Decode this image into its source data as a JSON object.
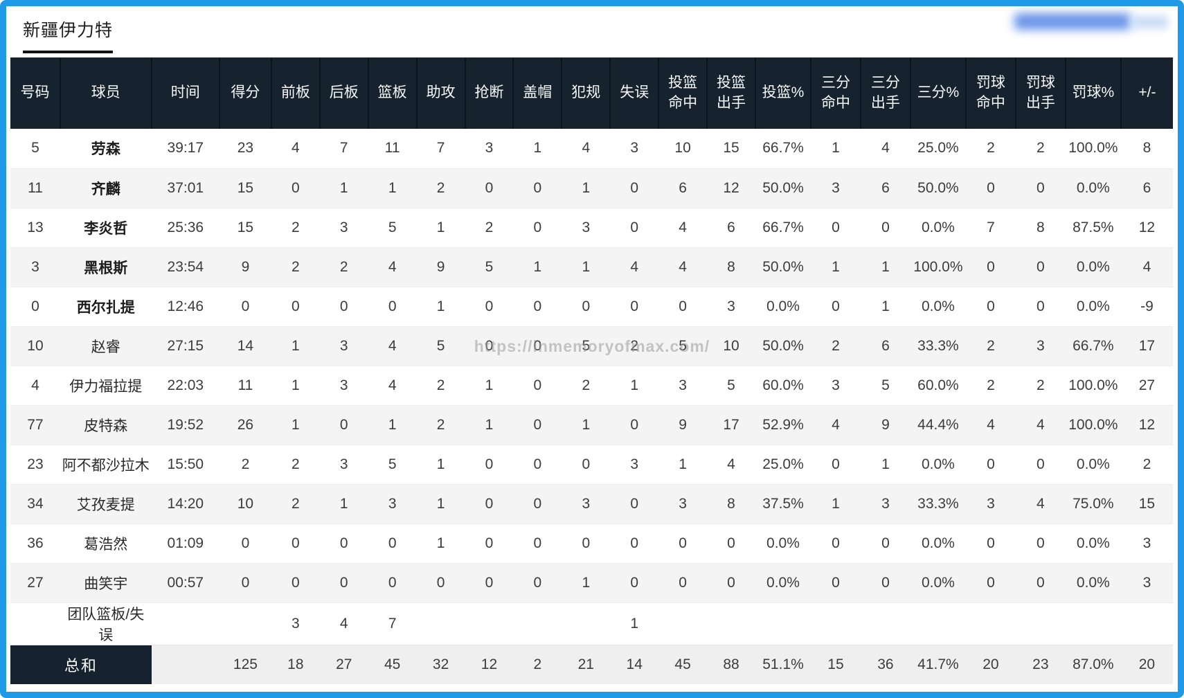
{
  "page": {
    "team_tab": "新疆伊力特",
    "watermark": "https://inmemoryofmax.com/",
    "accent_colors": {
      "frame_border": "#1e9ae8",
      "header_bg": "#16222e",
      "row_alt_bg": "#f4f4f4",
      "totals_bg": "#efefef"
    }
  },
  "table": {
    "headers": [
      "号码",
      "球员",
      "时间",
      "得分",
      "前板",
      "后板",
      "篮板",
      "助攻",
      "抢断",
      "盖帽",
      "犯规",
      "失误",
      "投篮\n命中",
      "投篮\n出手",
      "投篮%",
      "三分\n命中",
      "三分\n出手",
      "三分%",
      "罚球\n命中",
      "罚球\n出手",
      "罚球%",
      "+/-"
    ],
    "rows": [
      {
        "bold": true,
        "cells": [
          "5",
          "劳森",
          "39:17",
          "23",
          "4",
          "7",
          "11",
          "7",
          "3",
          "1",
          "4",
          "3",
          "10",
          "15",
          "66.7%",
          "1",
          "4",
          "25.0%",
          "2",
          "2",
          "100.0%",
          "8"
        ]
      },
      {
        "bold": true,
        "cells": [
          "11",
          "齐麟",
          "37:01",
          "15",
          "0",
          "1",
          "1",
          "2",
          "0",
          "0",
          "1",
          "0",
          "6",
          "12",
          "50.0%",
          "3",
          "6",
          "50.0%",
          "0",
          "0",
          "0.0%",
          "6"
        ]
      },
      {
        "bold": true,
        "cells": [
          "13",
          "李炎哲",
          "25:36",
          "15",
          "2",
          "3",
          "5",
          "1",
          "2",
          "0",
          "3",
          "0",
          "4",
          "6",
          "66.7%",
          "0",
          "0",
          "0.0%",
          "7",
          "8",
          "87.5%",
          "12"
        ]
      },
      {
        "bold": true,
        "cells": [
          "3",
          "黑根斯",
          "23:54",
          "9",
          "2",
          "2",
          "4",
          "9",
          "5",
          "1",
          "1",
          "4",
          "4",
          "8",
          "50.0%",
          "1",
          "1",
          "100.0%",
          "0",
          "0",
          "0.0%",
          "4"
        ]
      },
      {
        "bold": true,
        "cells": [
          "0",
          "西尔扎提",
          "12:46",
          "0",
          "0",
          "0",
          "0",
          "1",
          "0",
          "0",
          "0",
          "0",
          "0",
          "3",
          "0.0%",
          "0",
          "1",
          "0.0%",
          "0",
          "0",
          "0.0%",
          "-9"
        ]
      },
      {
        "bold": false,
        "cells": [
          "10",
          "赵睿",
          "27:15",
          "14",
          "1",
          "3",
          "4",
          "5",
          "0",
          "0",
          "5",
          "2",
          "5",
          "10",
          "50.0%",
          "2",
          "6",
          "33.3%",
          "2",
          "3",
          "66.7%",
          "17"
        ]
      },
      {
        "bold": false,
        "cells": [
          "4",
          "伊力福拉提",
          "22:03",
          "11",
          "1",
          "3",
          "4",
          "2",
          "1",
          "0",
          "2",
          "1",
          "3",
          "5",
          "60.0%",
          "3",
          "5",
          "60.0%",
          "2",
          "2",
          "100.0%",
          "27"
        ]
      },
      {
        "bold": false,
        "cells": [
          "77",
          "皮特森",
          "19:52",
          "26",
          "1",
          "0",
          "1",
          "2",
          "1",
          "0",
          "1",
          "0",
          "9",
          "17",
          "52.9%",
          "4",
          "9",
          "44.4%",
          "4",
          "4",
          "100.0%",
          "12"
        ]
      },
      {
        "bold": false,
        "cells": [
          "23",
          "阿不都沙拉木",
          "15:50",
          "2",
          "2",
          "3",
          "5",
          "1",
          "0",
          "0",
          "0",
          "3",
          "1",
          "4",
          "25.0%",
          "0",
          "1",
          "0.0%",
          "0",
          "0",
          "0.0%",
          "2"
        ]
      },
      {
        "bold": false,
        "cells": [
          "34",
          "艾孜麦提",
          "14:20",
          "10",
          "2",
          "1",
          "3",
          "1",
          "0",
          "0",
          "3",
          "0",
          "3",
          "8",
          "37.5%",
          "1",
          "3",
          "33.3%",
          "3",
          "4",
          "75.0%",
          "15"
        ]
      },
      {
        "bold": false,
        "cells": [
          "36",
          "葛浩然",
          "01:09",
          "0",
          "0",
          "0",
          "0",
          "1",
          "0",
          "0",
          "0",
          "0",
          "0",
          "0",
          "0.0%",
          "0",
          "0",
          "0.0%",
          "0",
          "0",
          "0.0%",
          "3"
        ]
      },
      {
        "bold": false,
        "cells": [
          "27",
          "曲笑宇",
          "00:57",
          "0",
          "0",
          "0",
          "0",
          "0",
          "0",
          "0",
          "1",
          "0",
          "0",
          "0",
          "0.0%",
          "0",
          "0",
          "0.0%",
          "0",
          "0",
          "0.0%",
          "3"
        ]
      }
    ],
    "team_row": {
      "cells": [
        "",
        "团队篮板/失误",
        "",
        "",
        "3",
        "4",
        "7",
        "",
        "",
        "",
        "",
        "1",
        "",
        "",
        "",
        "",
        "",
        "",
        "",
        "",
        "",
        ""
      ]
    },
    "totals_row": {
      "label": "总和",
      "cells": [
        "",
        "125",
        "18",
        "27",
        "45",
        "32",
        "12",
        "2",
        "21",
        "14",
        "45",
        "88",
        "51.1%",
        "15",
        "36",
        "41.7%",
        "20",
        "23",
        "87.0%",
        "20"
      ]
    }
  }
}
